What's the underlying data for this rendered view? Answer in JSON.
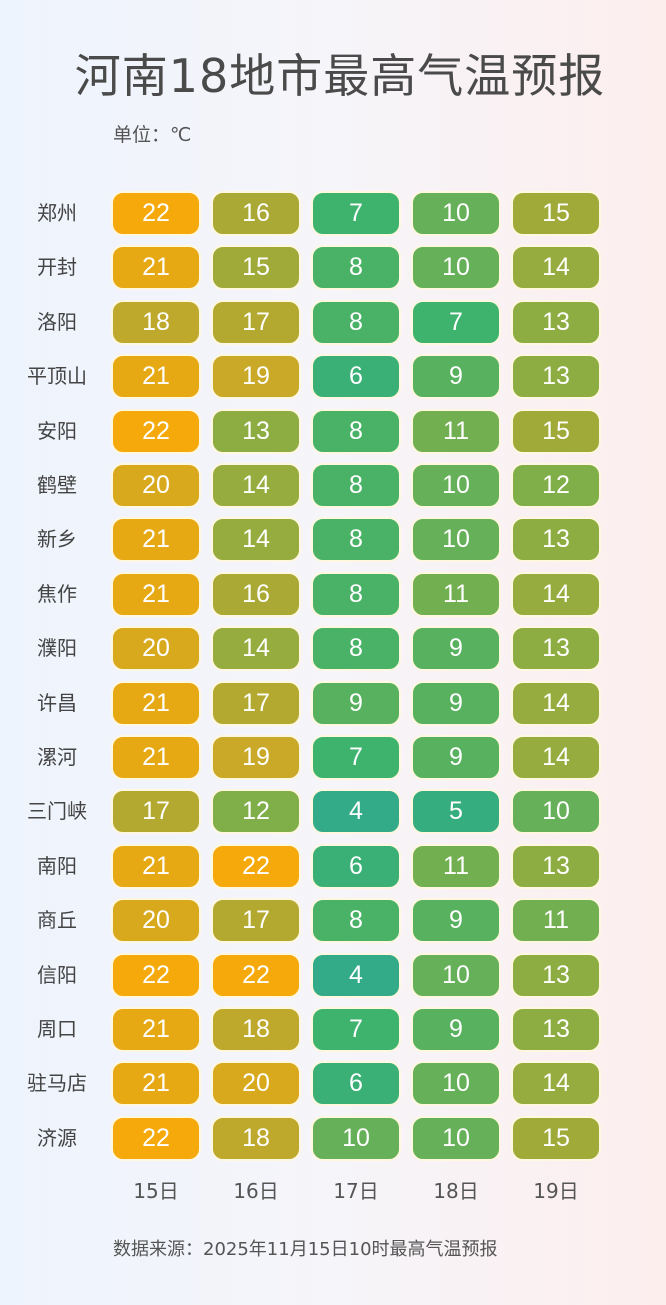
{
  "title": "河南18地市最高气温预报",
  "unit": "单位：℃",
  "source": "数据来源：2025年11月15日10时最高气温预报",
  "chart_data": {
    "type": "heatmap",
    "title": "河南18地市最高气温预报",
    "x": [
      "15日",
      "16日",
      "17日",
      "18日",
      "19日"
    ],
    "y": [
      "郑州",
      "开封",
      "洛阳",
      "平顶山",
      "安阳",
      "鹤壁",
      "新乡",
      "焦作",
      "濮阳",
      "许昌",
      "漯河",
      "三门峡",
      "南阳",
      "商丘",
      "信阳",
      "周口",
      "驻马店",
      "济源"
    ],
    "values": [
      [
        22,
        16,
        7,
        10,
        15
      ],
      [
        21,
        15,
        8,
        10,
        14
      ],
      [
        18,
        17,
        8,
        7,
        13
      ],
      [
        21,
        19,
        6,
        9,
        13
      ],
      [
        22,
        13,
        8,
        11,
        15
      ],
      [
        20,
        14,
        8,
        10,
        12
      ],
      [
        21,
        14,
        8,
        10,
        13
      ],
      [
        21,
        16,
        8,
        11,
        14
      ],
      [
        20,
        14,
        8,
        9,
        13
      ],
      [
        21,
        17,
        9,
        9,
        14
      ],
      [
        21,
        19,
        7,
        9,
        14
      ],
      [
        17,
        12,
        4,
        5,
        10
      ],
      [
        21,
        22,
        6,
        11,
        13
      ],
      [
        20,
        17,
        8,
        9,
        11
      ],
      [
        22,
        22,
        4,
        10,
        13
      ],
      [
        21,
        18,
        7,
        9,
        13
      ],
      [
        21,
        20,
        6,
        10,
        14
      ],
      [
        22,
        18,
        10,
        10,
        15
      ]
    ],
    "color_scale": {
      "min": 4,
      "max": 22,
      "colors": [
        "#33aa88",
        "#3db36e",
        "#65b058",
        "#8dad42",
        "#aaa935",
        "#c9a927",
        "#f5a90a"
      ]
    }
  }
}
